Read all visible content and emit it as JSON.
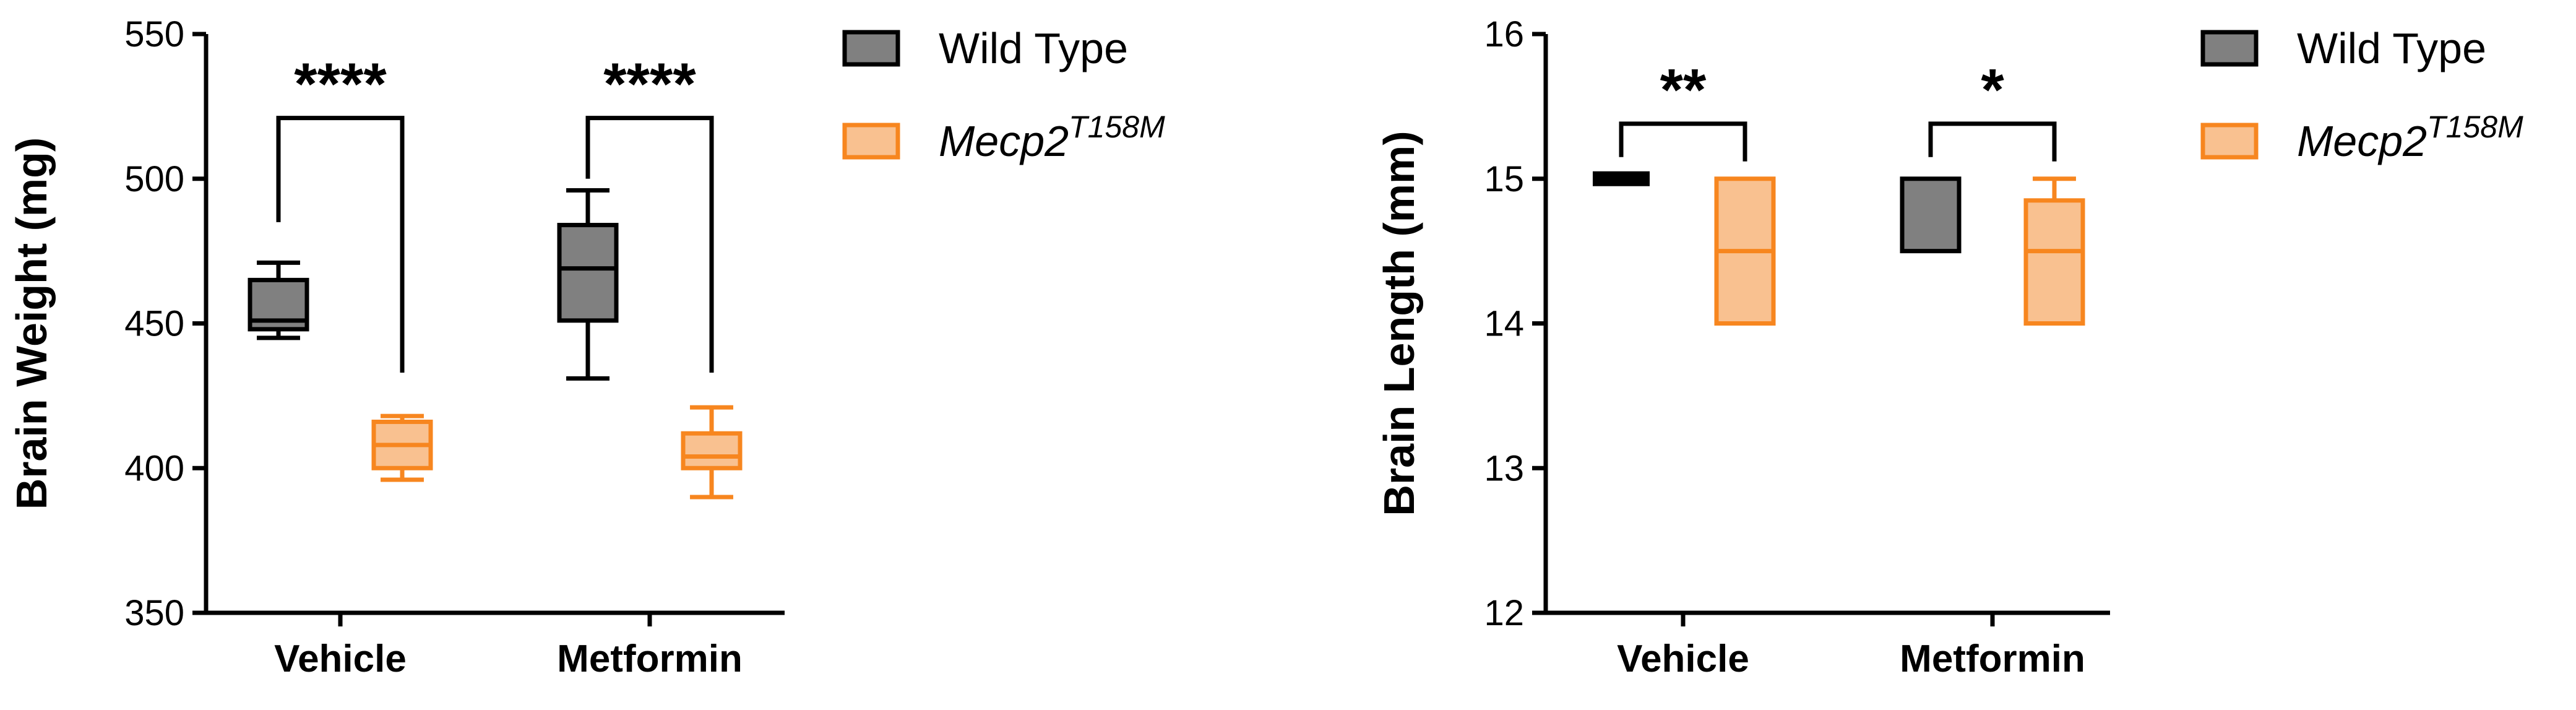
{
  "colors": {
    "wild_type_fill": "#808080",
    "wild_type_stroke": "#000000",
    "mecp2_fill": "#f9c190",
    "mecp2_stroke": "#f7861f",
    "axis": "#000000"
  },
  "chart_data": [
    {
      "type": "box",
      "xlabel": "",
      "ylabel": "Brain Weight (mg)",
      "ylim": [
        350,
        550
      ],
      "yticks": [
        350,
        400,
        450,
        500,
        550
      ],
      "categories": [
        "Vehicle",
        "Metformin"
      ],
      "grid": false,
      "legend_position": "right",
      "series": [
        {
          "name": "Wild Type",
          "boxes": [
            {
              "min": 445,
              "q1": 448,
              "median": 451,
              "q3": 465,
              "max": 471
            },
            {
              "min": 431,
              "q1": 451,
              "median": 469,
              "q3": 484,
              "max": 496
            }
          ]
        },
        {
          "name": "Mecp2",
          "name_sup": "T158M",
          "boxes": [
            {
              "min": 396,
              "q1": 400,
              "median": 408,
              "q3": 416,
              "max": 418
            },
            {
              "min": 390,
              "q1": 400,
              "median": 404,
              "q3": 412,
              "max": 421
            }
          ]
        }
      ],
      "significance": [
        {
          "category": "Vehicle",
          "label": "****",
          "left_y": 485,
          "right_y": 433,
          "bracket_y": 521
        },
        {
          "category": "Metformin",
          "label": "****",
          "left_y": 500,
          "right_y": 433,
          "bracket_y": 521
        }
      ]
    },
    {
      "type": "box",
      "xlabel": "",
      "ylabel": "Brain Length (mm)",
      "ylim": [
        12,
        16
      ],
      "yticks": [
        12,
        13,
        14,
        15,
        16
      ],
      "categories": [
        "Vehicle",
        "Metformin"
      ],
      "grid": false,
      "legend_position": "right",
      "series": [
        {
          "name": "Wild Type",
          "boxes": [
            {
              "min": 15.0,
              "q1": 15.0,
              "median": 15.0,
              "q3": 15.0,
              "max": 15.0
            },
            {
              "min": 14.5,
              "q1": 14.5,
              "median": 15.0,
              "q3": 15.0,
              "max": 15.0
            }
          ]
        },
        {
          "name": "Mecp2",
          "name_sup": "T158M",
          "boxes": [
            {
              "min": 14.0,
              "q1": 14.0,
              "median": 14.5,
              "q3": 15.0,
              "max": 15.0
            },
            {
              "min": 14.0,
              "q1": 14.0,
              "median": 14.5,
              "q3": 14.85,
              "max": 15.0
            }
          ]
        }
      ],
      "significance": [
        {
          "category": "Vehicle",
          "label": "**",
          "left_y": 15.15,
          "right_y": 15.12,
          "bracket_y": 15.38
        },
        {
          "category": "Metformin",
          "label": "*",
          "left_y": 15.15,
          "right_y": 15.12,
          "bracket_y": 15.38
        }
      ]
    }
  ]
}
